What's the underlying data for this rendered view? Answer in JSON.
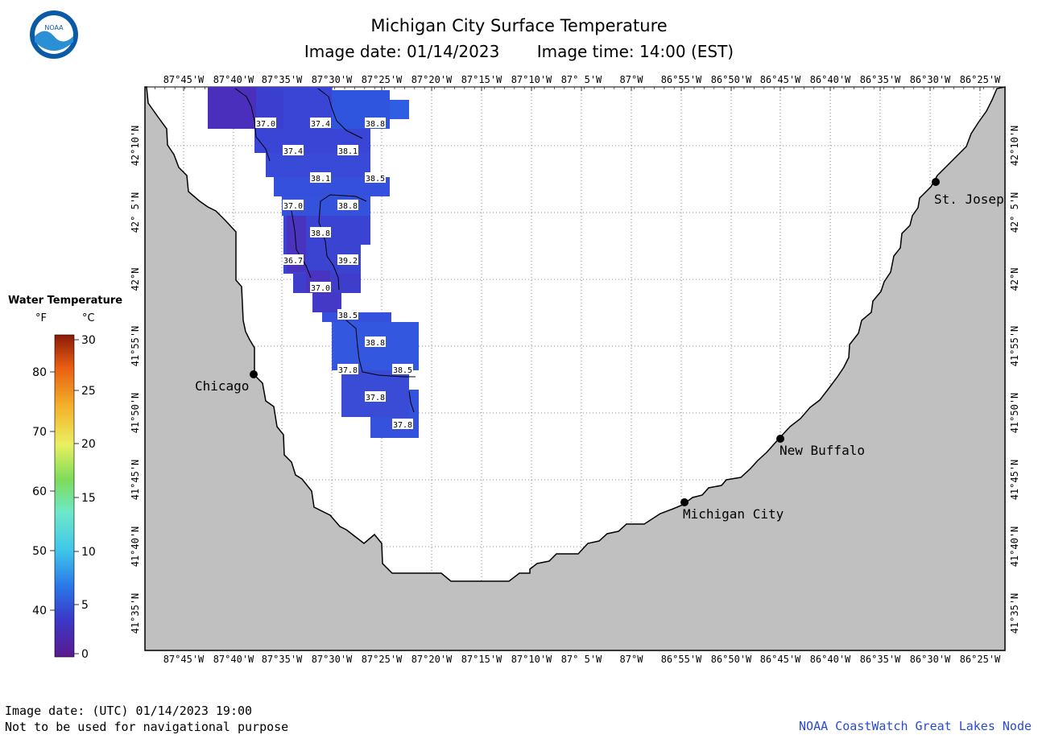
{
  "header": {
    "title": "Michigan City Surface Temperature",
    "image_date": "Image date: 01/14/2023",
    "image_time": "Image time: 14:00 (EST)"
  },
  "logo": {
    "text": "NOAA",
    "icon": "noaa-logo"
  },
  "legend": {
    "title": "Water Temperature",
    "unit_f": "°F",
    "unit_c": "°C",
    "f_ticks": [
      "80",
      "70",
      "60",
      "50",
      "40"
    ],
    "c_ticks": [
      "30",
      "25",
      "20",
      "15",
      "10",
      "5",
      "0"
    ]
  },
  "axes": {
    "lon_labels": [
      "87°45'W",
      "87°40'W",
      "87°35'W",
      "87°30'W",
      "87°25'W",
      "87°20'W",
      "87°15'W",
      "87°10'W",
      "87° 5'W",
      "87°W",
      "86°55'W",
      "86°50'W",
      "86°45'W",
      "86°40'W",
      "86°35'W",
      "86°30'W",
      "86°25'W"
    ],
    "lat_labels": [
      "42°10'N",
      "42° 5'N",
      "42°N",
      "41°55'N",
      "41°50'N",
      "41°45'N",
      "41°40'N",
      "41°35'N"
    ]
  },
  "cities": [
    {
      "name": "Chicago"
    },
    {
      "name": "St. Josep"
    },
    {
      "name": "New Buffalo"
    },
    {
      "name": "Michigan City"
    }
  ],
  "temperature_labels": [
    "37.0",
    "37.4",
    "38.8",
    "37.4",
    "38.1",
    "38.1",
    "38.5",
    "37.0",
    "38.8",
    "38.8",
    "36.7",
    "39.2",
    "37.0",
    "38.5",
    "38.8",
    "37.8",
    "38.5",
    "37.8",
    "37.8"
  ],
  "footer": {
    "utc_date": "Image date: (UTC) 01/14/2023  19:00",
    "disclaimer": "Not to be used for navigational purpose",
    "credit": "NOAA CoastWatch Great Lakes Node"
  },
  "colors": {
    "land": "#c0c0c0",
    "water": "#ffffff",
    "credit": "#2a4bd0"
  }
}
